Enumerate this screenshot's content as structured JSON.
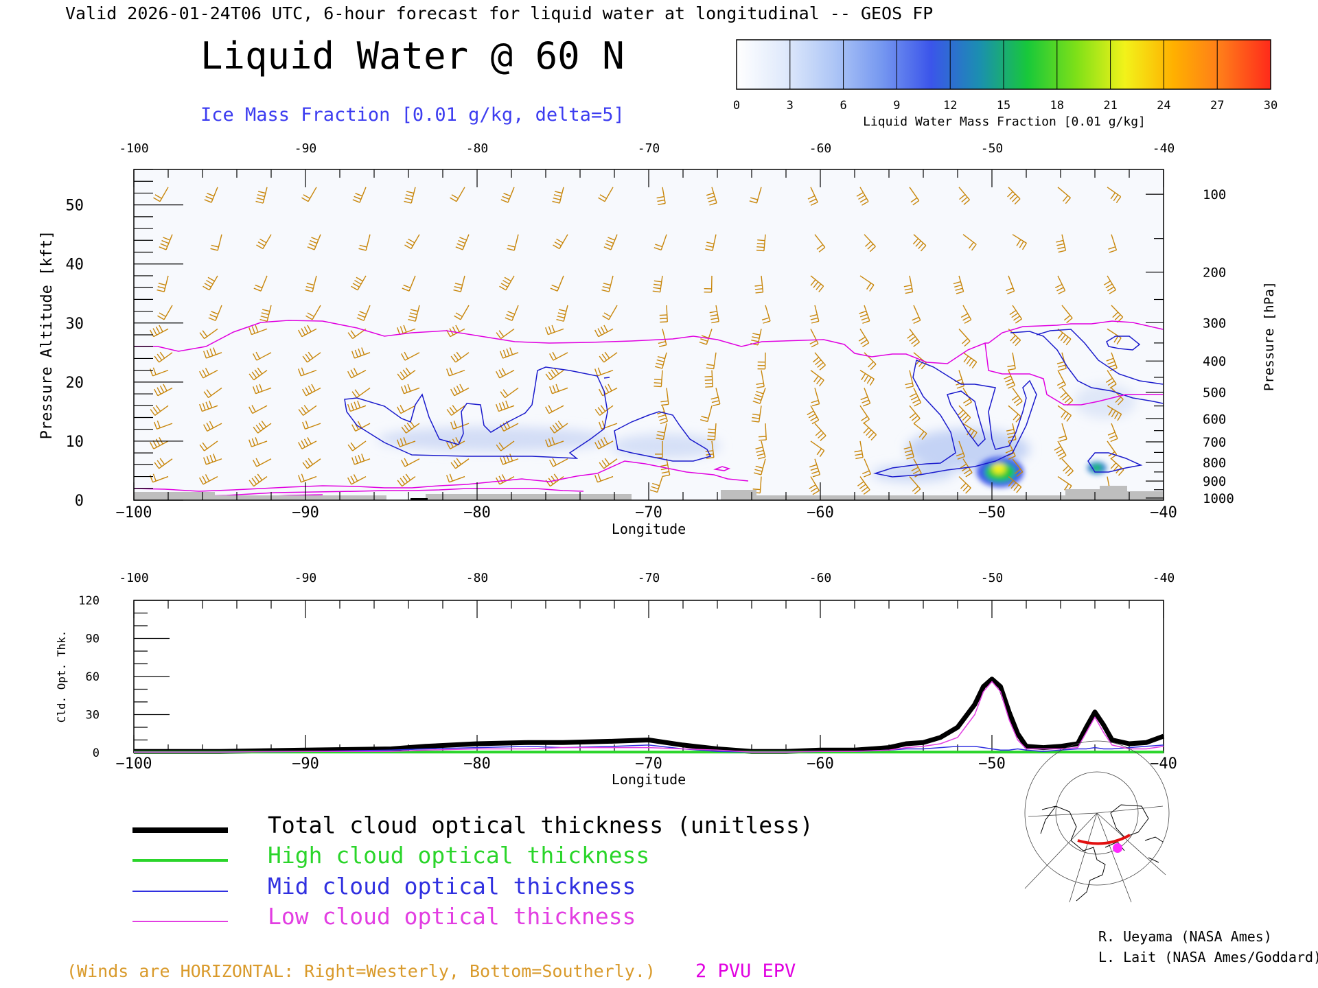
{
  "header": {
    "valid_line": "Valid 2026-01-24T06 UTC, 6-hour forecast for liquid water at longitudinal -- GEOS FP",
    "main_title": "Liquid Water @ 60 N",
    "contour_caption": "Ice Mass Fraction [0.01 g/kg, delta=5]"
  },
  "colorbar": {
    "ticks": [
      "0",
      "3",
      "6",
      "9",
      "12",
      "15",
      "18",
      "21",
      "24",
      "27",
      "30"
    ],
    "label": "Liquid Water Mass Fraction [0.01 g/kg]",
    "colors": [
      "#ffffff",
      "#dfe9fb",
      "#aec6f6",
      "#7597f0",
      "#3b55ea",
      "#1b8fb0",
      "#18c83a",
      "#7ee018",
      "#f2f21a",
      "#ffb000",
      "#ff7a1a",
      "#ff2a1a"
    ]
  },
  "top_panel": {
    "top_axis_ticks": [
      "-100",
      "-90",
      "-80",
      "-70",
      "-60",
      "-50",
      "-40"
    ],
    "bottom_axis_ticks": [
      "−100",
      "−90",
      "−80",
      "−70",
      "−60",
      "−50",
      "−40"
    ],
    "x_label": "Longitude",
    "y_label": "Pressure Altitude [kft]",
    "y_ticks": [
      "0",
      "10",
      "20",
      "30",
      "40",
      "50"
    ],
    "right_label": "Pressure [hPa]",
    "right_ticks": [
      "100",
      "200",
      "300",
      "400",
      "500",
      "600",
      "700",
      "800",
      "900",
      "1000"
    ]
  },
  "bottom_panel": {
    "top_axis_ticks": [
      "-100",
      "-90",
      "-80",
      "-70",
      "-60",
      "-50",
      "-40"
    ],
    "bottom_axis_ticks": [
      "−100",
      "−90",
      "−80",
      "−70",
      "−60",
      "−50",
      "−40"
    ],
    "x_label": "Longitude",
    "y_label": "Cld. Opt. Thk.",
    "y_ticks": [
      "0",
      "30",
      "60",
      "90",
      "120"
    ]
  },
  "legend": {
    "items": [
      {
        "label": "Total cloud optical thickness (unitless)",
        "color": "#000000"
      },
      {
        "label": "High cloud optical thickness",
        "color": "#2ad52a"
      },
      {
        "label": "Mid cloud optical thickness",
        "color": "#3030e0"
      },
      {
        "label": "Low cloud optical thickness",
        "color": "#e23ee2"
      }
    ]
  },
  "footer": {
    "winds_note": "(Winds are HORIZONTAL: Right=Westerly, Bottom=Southerly.)",
    "epv_label": "2 PVU EPV",
    "credit_1": "R. Ueyama (NASA Ames)",
    "credit_2": "L. Lait (NASA Ames/Goddard)"
  },
  "colors": {
    "wind_barbs": "#c8860a",
    "epv_contour": "#e000e0",
    "ice_contour": "#1a1acc",
    "terrain": "#bebebe",
    "footer_winds_text": "#d99a2b",
    "footer_epv_text": "#e000e0",
    "caption_text": "#3c3cf0"
  },
  "chart_data": [
    {
      "type": "heatmap",
      "description_var": "Liquid water mass fraction cross-section",
      "x_range": [
        -100,
        -40
      ],
      "y_range": [
        0,
        56
      ],
      "colorbar_range": [
        0,
        30
      ],
      "features": [
        {
          "lon": -50,
          "alt_kft": 5,
          "peak_value": 24
        },
        {
          "lon": -44,
          "alt_kft": 6,
          "peak_value": 13
        }
      ],
      "ice_contour_regions": [
        {
          "lon_range": [
            -88,
            -68
          ],
          "alt_range_kft": [
            7,
            23
          ]
        },
        {
          "lon_range": [
            -73,
            -66
          ],
          "alt_range_kft": [
            8,
            16
          ]
        },
        {
          "lon_range": [
            -57,
            -47
          ],
          "alt_range_kft": [
            3,
            23
          ]
        },
        {
          "lon_range": [
            -49,
            -40
          ],
          "alt_range_kft": [
            15,
            29
          ]
        },
        {
          "lon_range": [
            -45,
            -41
          ],
          "alt_range_kft": [
            5,
            9
          ]
        }
      ],
      "epv_2pvu_alt_kft": {
        "lon": [
          -100,
          -98,
          -95,
          -90,
          -86,
          -83,
          -80,
          -75,
          -70,
          -65,
          -60,
          -57,
          -54,
          -50,
          -48,
          -45,
          -40
        ],
        "alt": [
          26,
          25.5,
          27,
          30,
          30,
          28,
          27,
          26,
          27,
          28,
          27,
          26,
          25,
          28,
          30,
          31,
          29
        ]
      }
    },
    {
      "type": "line",
      "x": [
        -100,
        -95,
        -90,
        -85,
        -83,
        -80,
        -77,
        -75,
        -72,
        -70,
        -68,
        -66,
        -64,
        -62,
        -60,
        -58,
        -56,
        -55,
        -54,
        -53,
        -52,
        -51,
        -50.5,
        -50,
        -49.5,
        -49,
        -48.5,
        -48,
        -47,
        -46,
        -45,
        -44.5,
        -44,
        -43.5,
        -43,
        -42,
        -41,
        -40
      ],
      "series": [
        {
          "name": "Total cloud optical thickness (unitless)",
          "values": [
            1,
            1,
            2,
            3,
            5,
            7,
            8,
            8,
            9,
            10,
            6,
            3,
            1,
            1,
            2,
            2,
            4,
            7,
            8,
            12,
            20,
            38,
            52,
            58,
            52,
            32,
            15,
            5,
            4,
            5,
            7,
            20,
            32,
            22,
            10,
            7,
            8,
            13
          ]
        },
        {
          "name": "High cloud optical thickness",
          "values": [
            0.5,
            0.5,
            0.5,
            0.5,
            0.5,
            0.5,
            0.5,
            0.5,
            0.5,
            0.5,
            0.5,
            0.5,
            0.5,
            0.5,
            0.5,
            0.5,
            0.5,
            0.5,
            0.5,
            0.5,
            0.5,
            0.5,
            0.5,
            0.5,
            0.5,
            0.5,
            0.5,
            0.5,
            0.5,
            0.5,
            0.5,
            0.5,
            0.5,
            0.5,
            0.5,
            0.5,
            0.5,
            0.5
          ]
        },
        {
          "name": "Mid cloud optical thickness",
          "values": [
            0.5,
            0.5,
            1,
            2,
            3,
            4,
            5,
            4,
            5,
            6,
            3,
            1,
            0.5,
            0.5,
            1,
            1,
            2,
            3,
            3,
            4,
            5,
            5,
            4,
            3,
            2,
            2,
            3,
            2,
            1,
            2,
            3,
            3,
            4,
            3,
            3,
            4,
            5,
            6
          ]
        },
        {
          "name": "Low cloud optical thickness",
          "values": [
            0.5,
            0.5,
            1,
            1,
            2,
            3,
            3,
            4,
            4,
            4,
            3,
            2,
            0.5,
            0.5,
            1,
            1,
            2,
            4,
            5,
            7,
            12,
            30,
            48,
            56,
            48,
            26,
            10,
            3,
            3,
            3,
            4,
            16,
            28,
            16,
            6,
            3,
            3,
            5
          ]
        }
      ],
      "xlabel": "Longitude",
      "ylabel": "Cld. Opt. Thk.",
      "xlim": [
        -100,
        -40
      ],
      "ylim": [
        0,
        120
      ],
      "grid": false,
      "legend_placement": "below"
    }
  ]
}
